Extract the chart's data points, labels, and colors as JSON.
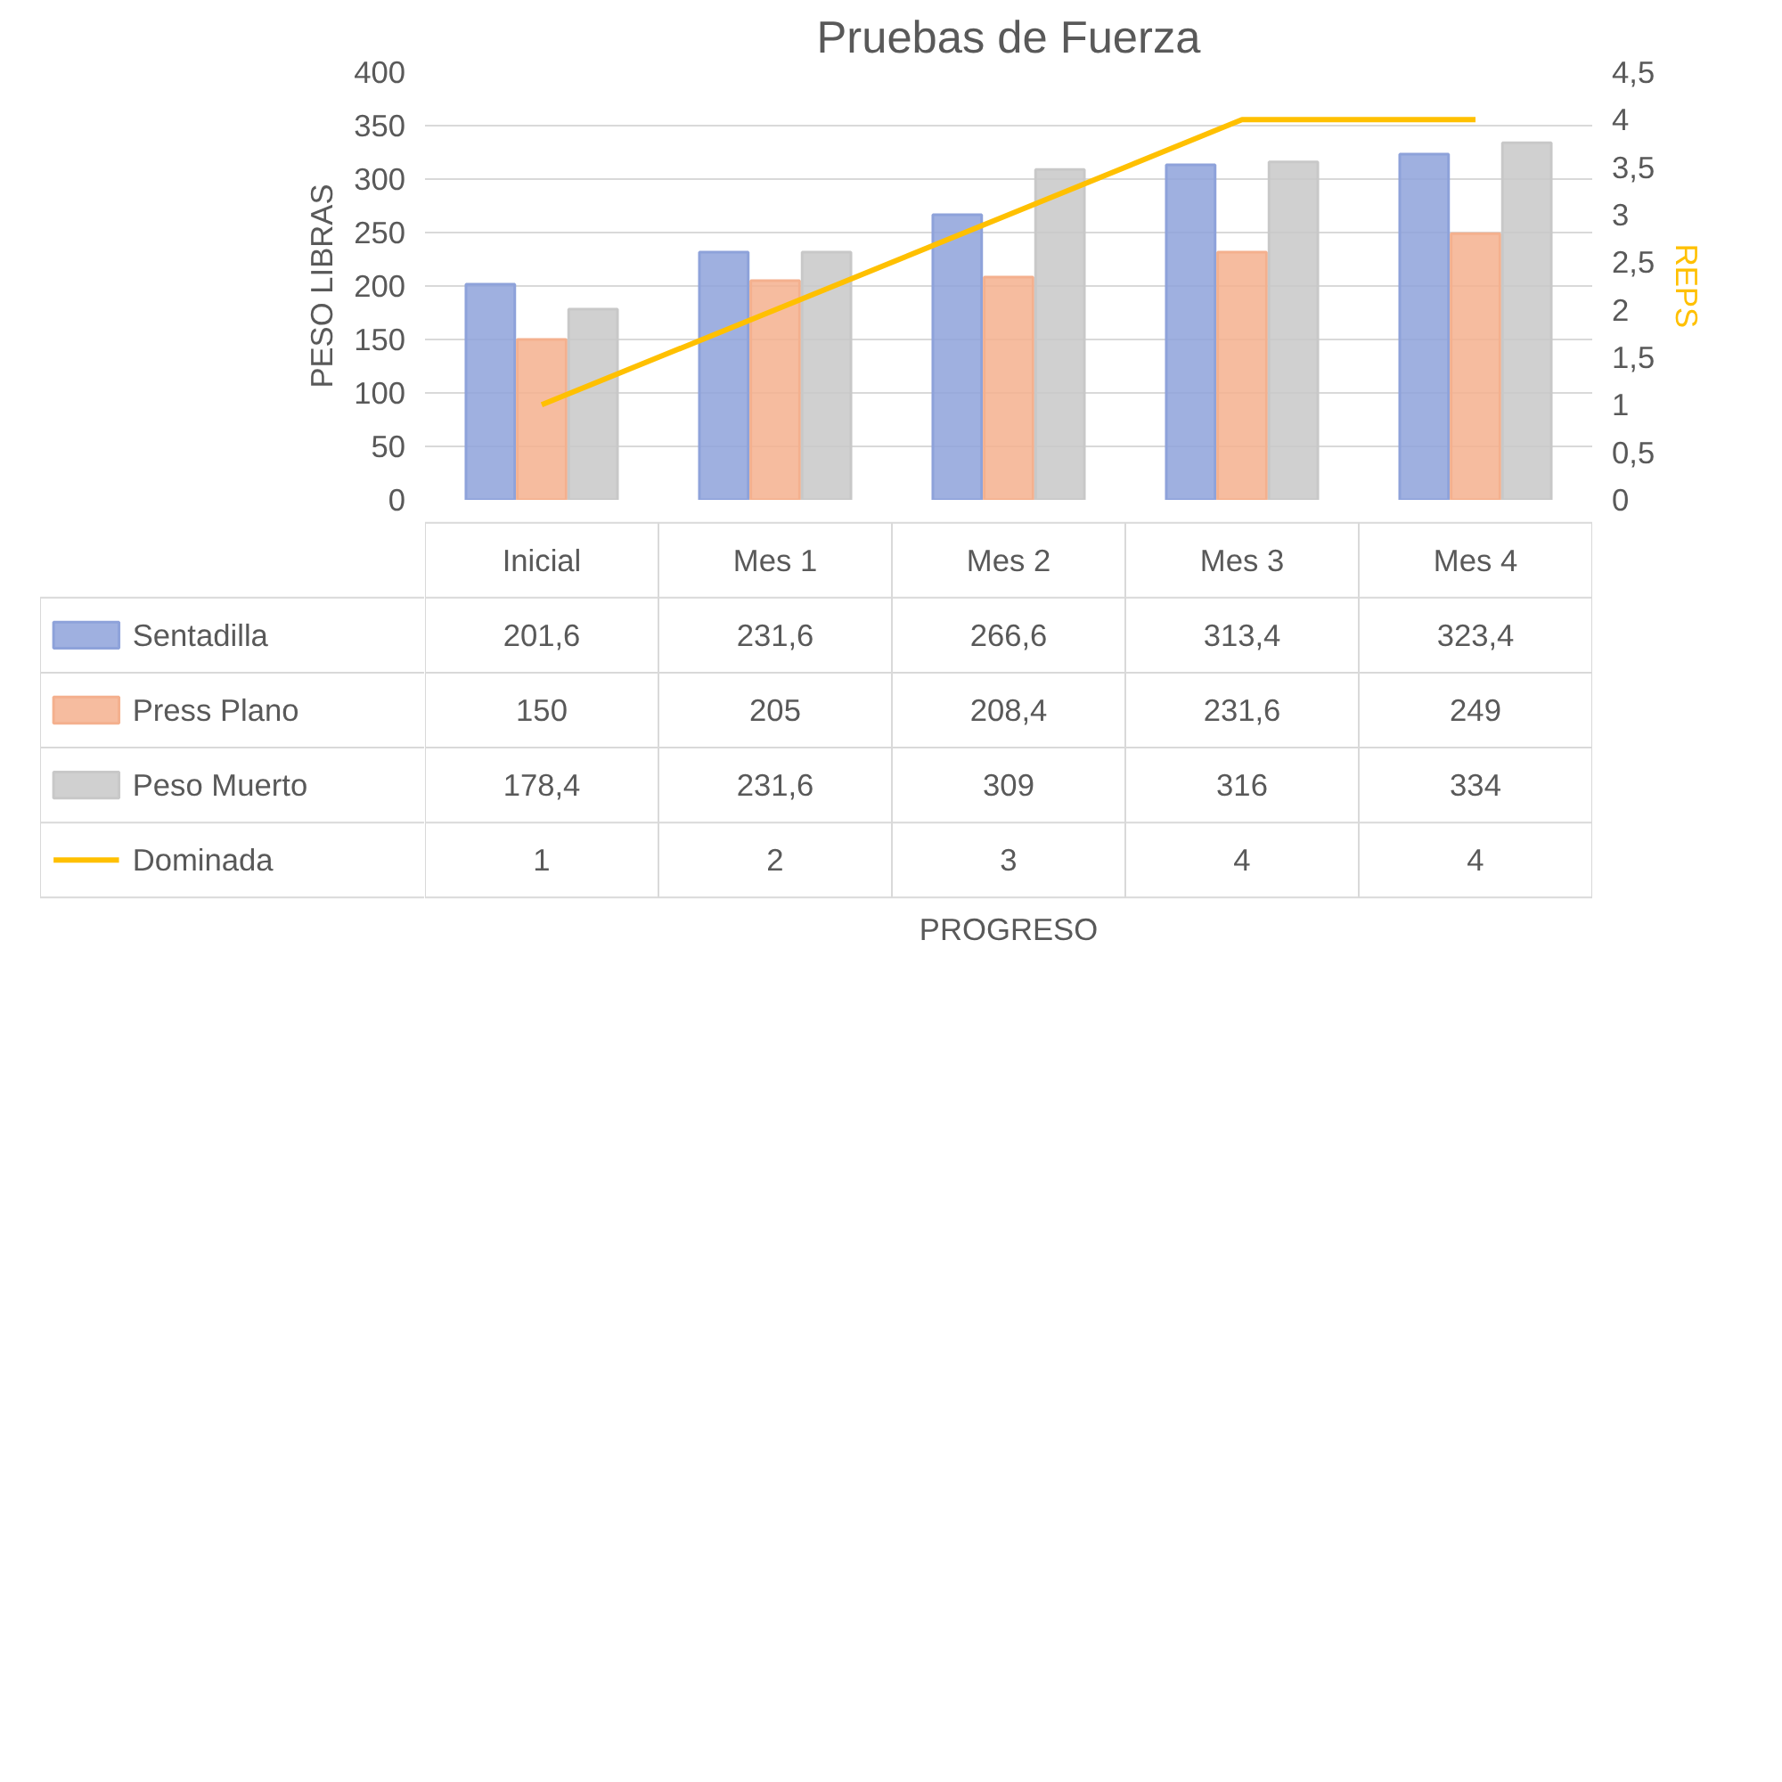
{
  "chart_data": {
    "type": "bar",
    "title": "Pruebas de Fuerza",
    "ylabel": "PESO LIBRAS",
    "y2label": "REPS",
    "annotations": [
      "PROGRESO"
    ],
    "categories": [
      "Inicial",
      "Mes 1",
      "Mes 2",
      "Mes 3",
      "Mes 4"
    ],
    "series": [
      {
        "name": "Sentadilla",
        "color": "#8ea2da",
        "values": [
          201.6,
          231.6,
          266.6,
          313.4,
          323.4
        ],
        "value_labels": [
          "201,6",
          "231,6",
          "266,6",
          "313,4",
          "323,4"
        ]
      },
      {
        "name": "Press Plano",
        "color": "#f4b08e",
        "values": [
          150,
          205,
          208.4,
          231.6,
          249
        ],
        "value_labels": [
          "150",
          "205",
          "208,4",
          "231,6",
          "249"
        ]
      },
      {
        "name": "Peso Muerto",
        "color": "#c8c8c8",
        "values": [
          178.4,
          231.6,
          309,
          316,
          334
        ],
        "value_labels": [
          "178,4",
          "231,6",
          "309",
          "316",
          "334"
        ]
      },
      {
        "name": "Dominada",
        "type": "line",
        "axis": "y2",
        "color": "#ffc000",
        "values": [
          1,
          2,
          3,
          4,
          4
        ],
        "value_labels": [
          "1",
          "2",
          "3",
          "4",
          "4"
        ]
      }
    ],
    "ylim": [
      0,
      400
    ],
    "yticks": [
      0,
      50,
      100,
      150,
      200,
      250,
      300,
      350,
      400
    ],
    "y2lim": [
      0,
      4.5
    ],
    "y2ticks": [
      0,
      {
        "value": 0.5,
        "label": "0,5"
      },
      1,
      {
        "value": 1.5,
        "label": "1,5"
      },
      2,
      {
        "value": 2.5,
        "label": "2,5"
      },
      3,
      {
        "value": 3.5,
        "label": "3,5"
      },
      4,
      {
        "value": 4.5,
        "label": "4,5"
      }
    ],
    "grid": "y",
    "legend": "bottom"
  }
}
